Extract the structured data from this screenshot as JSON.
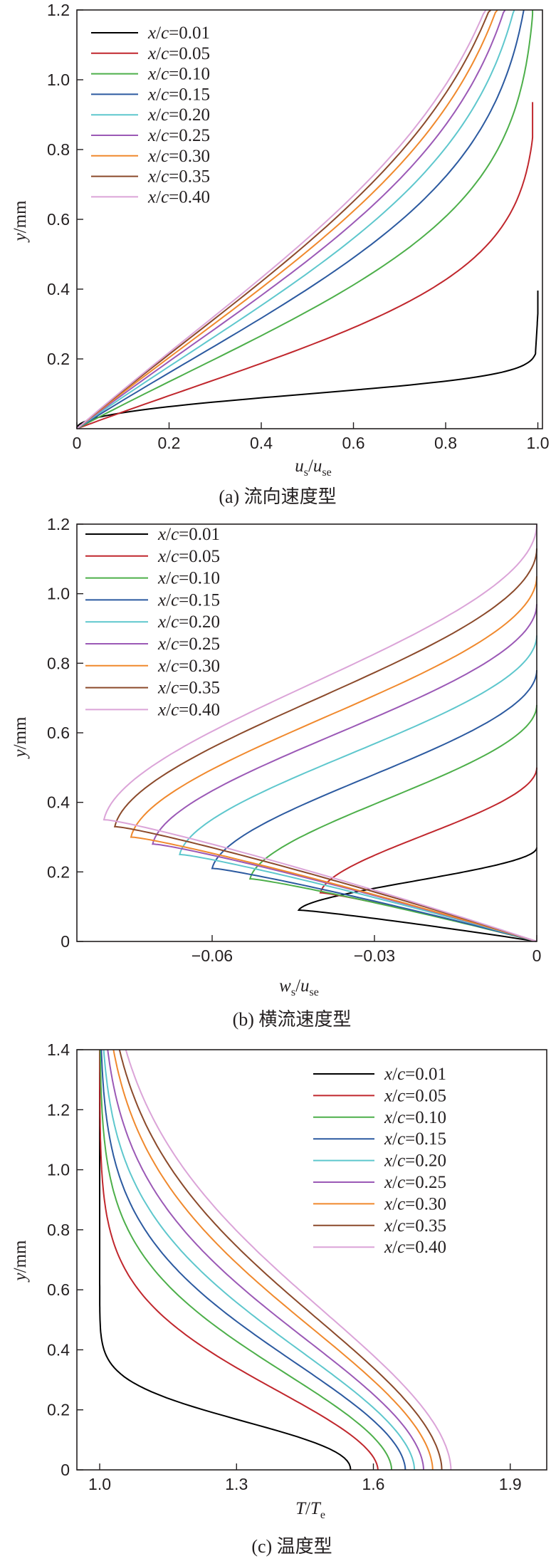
{
  "colors": {
    "axis": "#231f20",
    "series": [
      "#000000",
      "#c0272d",
      "#4daf4a",
      "#2c5aa0",
      "#5ec7cd",
      "#9b59b6",
      "#f0892d",
      "#8b4a2b",
      "#dba4d8"
    ]
  },
  "legend_labels": [
    "x/c=0.01",
    "x/c=0.05",
    "x/c=0.10",
    "x/c=0.15",
    "x/c=0.20",
    "x/c=0.25",
    "x/c=0.30",
    "x/c=0.35",
    "x/c=0.40"
  ],
  "chart_data": [
    {
      "type": "line",
      "caption": "(a) 流向速度型",
      "xlabel": "us/use",
      "ylabel": "y/mm",
      "xlim": [
        0,
        1.01
      ],
      "ylim": [
        0,
        1.2
      ],
      "xticks": [
        "0",
        "0.2",
        "0.4",
        "0.6",
        "0.8",
        "1.0"
      ],
      "yticks": [
        "0.2",
        "0.4",
        "0.6",
        "0.8",
        "1.0",
        "1.2"
      ],
      "legend_position": "top-left",
      "series": [
        {
          "name": "x/c=0.01",
          "boundary_layer_thickness_mm": 0.22
        },
        {
          "name": "x/c=0.05",
          "boundary_layer_thickness_mm": 0.52
        },
        {
          "name": "x/c=0.10",
          "boundary_layer_thickness_mm": 0.74
        },
        {
          "name": "x/c=0.15",
          "boundary_layer_thickness_mm": 0.88
        },
        {
          "name": "x/c=0.20",
          "boundary_layer_thickness_mm": 0.98
        },
        {
          "name": "x/c=0.25",
          "boundary_layer_thickness_mm": 1.06
        },
        {
          "name": "x/c=0.30",
          "boundary_layer_thickness_mm": 1.12
        },
        {
          "name": "x/c=0.35",
          "boundary_layer_thickness_mm": 1.17
        },
        {
          "name": "x/c=0.40",
          "boundary_layer_thickness_mm": 1.2
        }
      ]
    },
    {
      "type": "line",
      "caption": "(b) 横流速度型",
      "xlabel": "ws/use",
      "ylabel": "y/mm",
      "xlim": [
        -0.085,
        0
      ],
      "ylim": [
        0,
        1.2
      ],
      "xticks": [
        "−0.06",
        "−0.03",
        "0"
      ],
      "yticks": [
        "0",
        "0.2",
        "0.4",
        "0.6",
        "0.8",
        "1.0",
        "1.2"
      ],
      "legend_position": "top-left",
      "series": [
        {
          "name": "x/c=0.01",
          "min_ws": -0.044,
          "y_at_min_mm": 0.09,
          "top_mm": 0.27
        },
        {
          "name": "x/c=0.05",
          "min_ws": -0.04,
          "y_at_min_mm": 0.14,
          "top_mm": 0.5
        },
        {
          "name": "x/c=0.10",
          "min_ws": -0.053,
          "y_at_min_mm": 0.18,
          "top_mm": 0.68
        },
        {
          "name": "x/c=0.15",
          "min_ws": -0.06,
          "y_at_min_mm": 0.21,
          "top_mm": 0.78
        },
        {
          "name": "x/c=0.20",
          "min_ws": -0.066,
          "y_at_min_mm": 0.25,
          "top_mm": 0.88
        },
        {
          "name": "x/c=0.25",
          "min_ws": -0.071,
          "y_at_min_mm": 0.28,
          "top_mm": 0.97
        },
        {
          "name": "x/c=0.30",
          "min_ws": -0.075,
          "y_at_min_mm": 0.3,
          "top_mm": 1.05
        },
        {
          "name": "x/c=0.35",
          "min_ws": -0.078,
          "y_at_min_mm": 0.33,
          "top_mm": 1.13
        },
        {
          "name": "x/c=0.40",
          "min_ws": -0.08,
          "y_at_min_mm": 0.35,
          "top_mm": 1.2
        }
      ]
    },
    {
      "type": "line",
      "caption": "(c) 温度型",
      "xlabel": "T/Te",
      "ylabel": "y/mm",
      "xlim": [
        0.95,
        1.98
      ],
      "ylim": [
        0,
        1.4
      ],
      "xticks": [
        "1.0",
        "1.3",
        "1.6",
        "1.9"
      ],
      "yticks": [
        "0",
        "0.2",
        "0.4",
        "0.6",
        "0.8",
        "1.0",
        "1.2",
        "1.4"
      ],
      "legend_position": "top-right",
      "series": [
        {
          "name": "x/c=0.01",
          "wall_T": 1.55,
          "thickness_mm": 0.55
        },
        {
          "name": "x/c=0.05",
          "wall_T": 1.61,
          "thickness_mm": 0.7
        },
        {
          "name": "x/c=0.10",
          "wall_T": 1.64,
          "thickness_mm": 0.85
        },
        {
          "name": "x/c=0.15",
          "wall_T": 1.67,
          "thickness_mm": 0.95
        },
        {
          "name": "x/c=0.20",
          "wall_T": 1.69,
          "thickness_mm": 1.05
        },
        {
          "name": "x/c=0.25",
          "wall_T": 1.71,
          "thickness_mm": 1.15
        },
        {
          "name": "x/c=0.30",
          "wall_T": 1.73,
          "thickness_mm": 1.25
        },
        {
          "name": "x/c=0.35",
          "wall_T": 1.75,
          "thickness_mm": 1.33
        },
        {
          "name": "x/c=0.40",
          "wall_T": 1.77,
          "thickness_mm": 1.4
        }
      ]
    }
  ]
}
